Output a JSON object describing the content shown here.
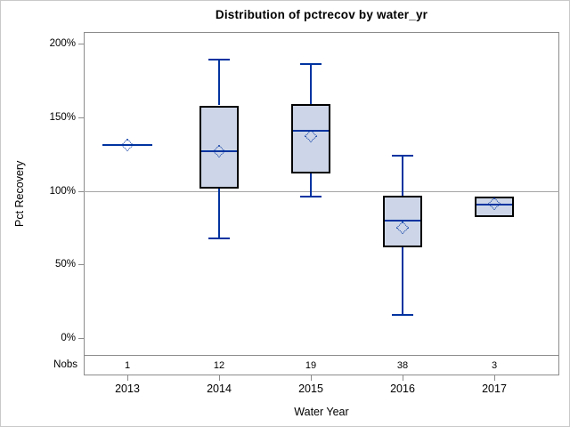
{
  "chart_data": {
    "type": "boxplot",
    "title": "Distribution of pctrecov by water_yr",
    "xlabel": "Water Year",
    "ylabel": "Pct Recovery",
    "nobs_label": "Nobs",
    "y_ticks": [
      {
        "value": 0,
        "label": "0%"
      },
      {
        "value": 50,
        "label": "50%"
      },
      {
        "value": 100,
        "label": "100%"
      },
      {
        "value": 150,
        "label": "150%"
      },
      {
        "value": 200,
        "label": "200%"
      }
    ],
    "axis_range": [
      -12,
      208
    ],
    "reference_line": 100,
    "grid": "off",
    "legend": "none",
    "categories": [
      "2013",
      "2014",
      "2015",
      "2016",
      "2017"
    ],
    "nobs": [
      1,
      12,
      19,
      38,
      3
    ],
    "series": [
      {
        "category": "2013",
        "n": 1,
        "whisker_low": null,
        "q1": null,
        "median": 131,
        "mean": 131,
        "q3": null,
        "whisker_high": null
      },
      {
        "category": "2014",
        "n": 12,
        "whisker_low": 68,
        "q1": 102,
        "median": 127,
        "mean": 127,
        "q3": 158,
        "whisker_high": 189
      },
      {
        "category": "2015",
        "n": 19,
        "whisker_low": 96,
        "q1": 112,
        "median": 141,
        "mean": 137,
        "q3": 159,
        "whisker_high": 186
      },
      {
        "category": "2016",
        "n": 38,
        "whisker_low": 16,
        "q1": 62,
        "median": 80,
        "mean": 75,
        "q3": 97,
        "whisker_high": 124
      },
      {
        "category": "2017",
        "n": 3,
        "whisker_low": null,
        "q1": 82,
        "median": 91,
        "mean": 91,
        "q3": 96,
        "whisker_high": null
      }
    ],
    "colors": {
      "box_fill": "#cdd6e8",
      "box_border": "#000000",
      "line": "#0033a0",
      "reference_line": "#a6a6a6",
      "frame": "#8c8c8c",
      "text": "#000000"
    }
  }
}
